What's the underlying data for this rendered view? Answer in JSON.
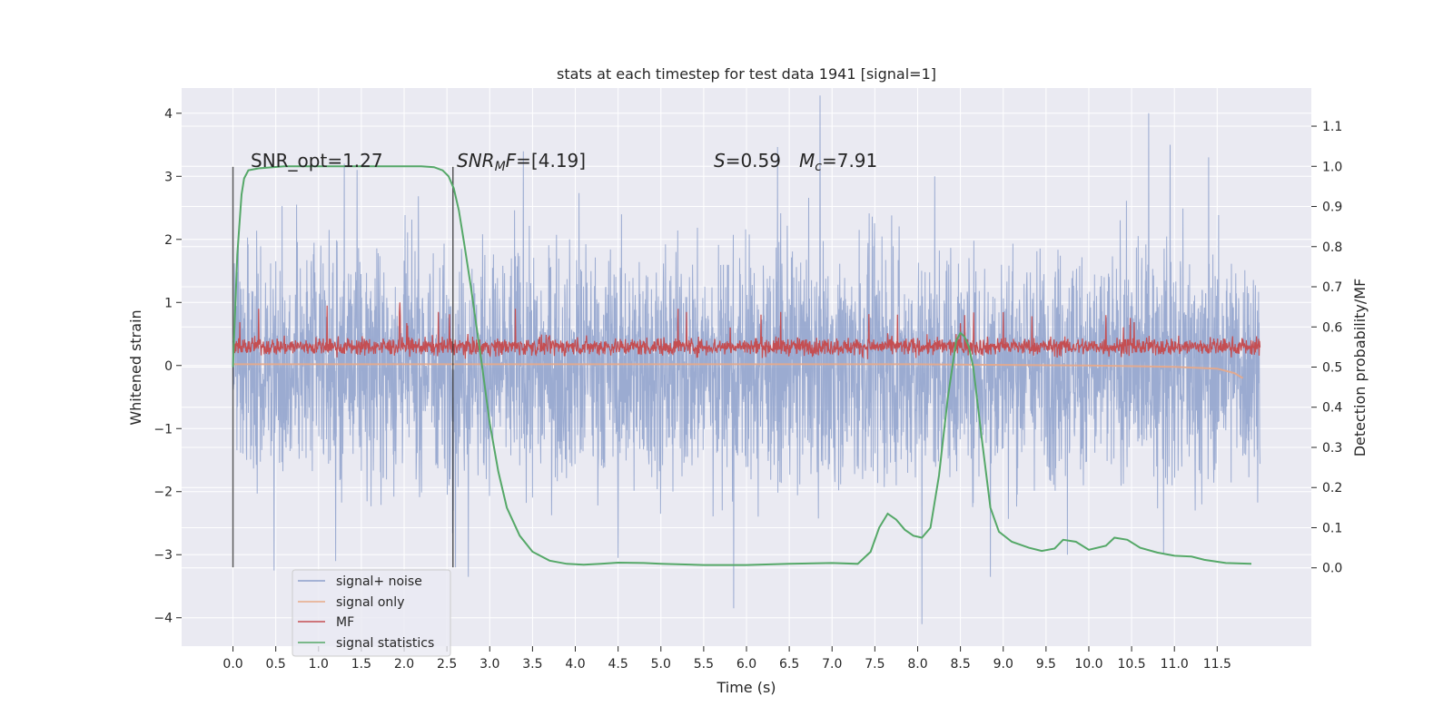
{
  "chart_data": {
    "type": "line",
    "title": "stats at each timestep for test data 1941 [signal=1]",
    "xlabel": "Time (s)",
    "ylabel_left": "Whitened strain",
    "ylabel_right": "Detection probability/MF",
    "xlim": [
      -0.6,
      12.6
    ],
    "ylim_left": [
      -4.45,
      4.4
    ],
    "ylim_right": [
      -0.195,
      1.195
    ],
    "x_ticks": [
      "0.0",
      "0.5",
      "1.0",
      "1.5",
      "2.0",
      "2.5",
      "3.0",
      "3.5",
      "4.0",
      "4.5",
      "5.0",
      "5.5",
      "6.0",
      "6.5",
      "7.0",
      "7.5",
      "8.0",
      "8.5",
      "9.0",
      "9.5",
      "10.0",
      "10.5",
      "11.0",
      "11.5"
    ],
    "y_ticks_left": [
      "4",
      "3",
      "2",
      "1",
      "0",
      "−1",
      "−2",
      "−3",
      "−4"
    ],
    "y_ticks_right": [
      "1.1",
      "1.0",
      "0.9",
      "0.8",
      "0.7",
      "0.6",
      "0.5",
      "0.4",
      "0.3",
      "0.2",
      "0.1",
      "0.0"
    ],
    "grid": true,
    "annotations": {
      "snr_opt": "SNR_opt=1.27",
      "snr_mf_var": "SNR",
      "snr_mf_sub": "M",
      "snr_mf_var2": "F",
      "snr_mf_val": "=[4.19]",
      "s_var": "S",
      "s_val": "=0.59",
      "mc_var": "M",
      "mc_sub": "c",
      "mc_val": "=7.91"
    },
    "vertical_lines_x": [
      0.0,
      2.57
    ],
    "legend": {
      "position": "lower-left",
      "entries": [
        {
          "label": "signal+ noise",
          "color": "#8da0cb"
        },
        {
          "label": "signal only",
          "color": "#e8a988"
        },
        {
          "label": "MF",
          "color": "#c44e52"
        },
        {
          "label": "signal statistics",
          "color": "#55a868"
        }
      ]
    },
    "series": [
      {
        "name": "signal+ noise",
        "axis": "left",
        "color": "#8da0cb",
        "x_range": [
          0.0,
          12.0
        ],
        "typical_band": [
          -1.4,
          1.4
        ],
        "extreme_peaks": [
          {
            "x": 0.48,
            "y": -3.25
          },
          {
            "x": 1.3,
            "y": 3.2
          },
          {
            "x": 1.45,
            "y": 3.1
          },
          {
            "x": 5.85,
            "y": -3.85
          },
          {
            "x": 8.05,
            "y": -4.1
          },
          {
            "x": 8.85,
            "y": -3.35
          },
          {
            "x": 10.7,
            "y": 4.0
          },
          {
            "x": 10.95,
            "y": 3.5
          },
          {
            "x": 11.4,
            "y": 3.3
          },
          {
            "x": 9.75,
            "y": -3.0
          },
          {
            "x": 1.2,
            "y": -3.1
          },
          {
            "x": 2.6,
            "y": -3.2
          },
          {
            "x": 2.75,
            "y": -3.35
          },
          {
            "x": 4.5,
            "y": -3.05
          },
          {
            "x": 8.2,
            "y": 3.0
          }
        ]
      },
      {
        "name": "signal only",
        "axis": "left",
        "color": "#e8a988",
        "x": [
          0.0,
          2.0,
          4.0,
          6.0,
          8.0,
          10.0,
          11.0,
          11.5,
          11.7,
          11.8
        ],
        "y": [
          0.02,
          0.02,
          0.02,
          0.02,
          0.02,
          0.0,
          -0.02,
          -0.05,
          -0.12,
          -0.2
        ]
      },
      {
        "name": "MF",
        "axis": "left",
        "color": "#c44e52",
        "x_range": [
          0.0,
          12.0
        ],
        "base": 0.3,
        "band": [
          0.05,
          0.55
        ],
        "peaks": [
          {
            "x": 0.3,
            "y": 0.9
          },
          {
            "x": 1.1,
            "y": 0.95
          },
          {
            "x": 1.95,
            "y": 1.0
          },
          {
            "x": 2.4,
            "y": 0.85
          },
          {
            "x": 3.3,
            "y": 0.9
          },
          {
            "x": 5.2,
            "y": 0.9
          },
          {
            "x": 5.3,
            "y": 0.85
          },
          {
            "x": 6.4,
            "y": 0.85
          },
          {
            "x": 8.55,
            "y": 0.8
          },
          {
            "x": 10.2,
            "y": 0.8
          }
        ]
      },
      {
        "name": "signal statistics",
        "axis": "right",
        "color": "#55a868",
        "x": [
          0.0,
          0.05,
          0.1,
          0.13,
          0.18,
          0.3,
          0.6,
          1.0,
          1.5,
          2.0,
          2.2,
          2.35,
          2.45,
          2.52,
          2.58,
          2.64,
          2.7,
          2.78,
          2.9,
          3.0,
          3.1,
          3.2,
          3.35,
          3.5,
          3.7,
          3.9,
          4.1,
          4.3,
          4.5,
          4.8,
          5.0,
          5.5,
          6.0,
          6.5,
          7.0,
          7.3,
          7.45,
          7.55,
          7.65,
          7.75,
          7.85,
          7.95,
          8.05,
          8.15,
          8.25,
          8.35,
          8.45,
          8.5,
          8.55,
          8.6,
          8.65,
          8.75,
          8.85,
          8.95,
          9.1,
          9.3,
          9.45,
          9.6,
          9.7,
          9.85,
          10.0,
          10.2,
          10.3,
          10.45,
          10.6,
          10.8,
          11.0,
          11.2,
          11.35,
          11.6,
          11.9
        ],
        "y": [
          0.5,
          0.78,
          0.93,
          0.97,
          0.99,
          0.995,
          1.0,
          1.0,
          1.0,
          1.0,
          1.0,
          0.998,
          0.99,
          0.975,
          0.945,
          0.89,
          0.81,
          0.7,
          0.52,
          0.36,
          0.24,
          0.15,
          0.08,
          0.04,
          0.018,
          0.01,
          0.008,
          0.01,
          0.013,
          0.012,
          0.01,
          0.007,
          0.007,
          0.01,
          0.012,
          0.01,
          0.04,
          0.1,
          0.135,
          0.12,
          0.095,
          0.08,
          0.075,
          0.1,
          0.23,
          0.42,
          0.565,
          0.585,
          0.575,
          0.55,
          0.5,
          0.32,
          0.15,
          0.09,
          0.065,
          0.05,
          0.042,
          0.048,
          0.07,
          0.065,
          0.045,
          0.055,
          0.075,
          0.07,
          0.05,
          0.038,
          0.03,
          0.028,
          0.02,
          0.012,
          0.01
        ]
      }
    ]
  }
}
